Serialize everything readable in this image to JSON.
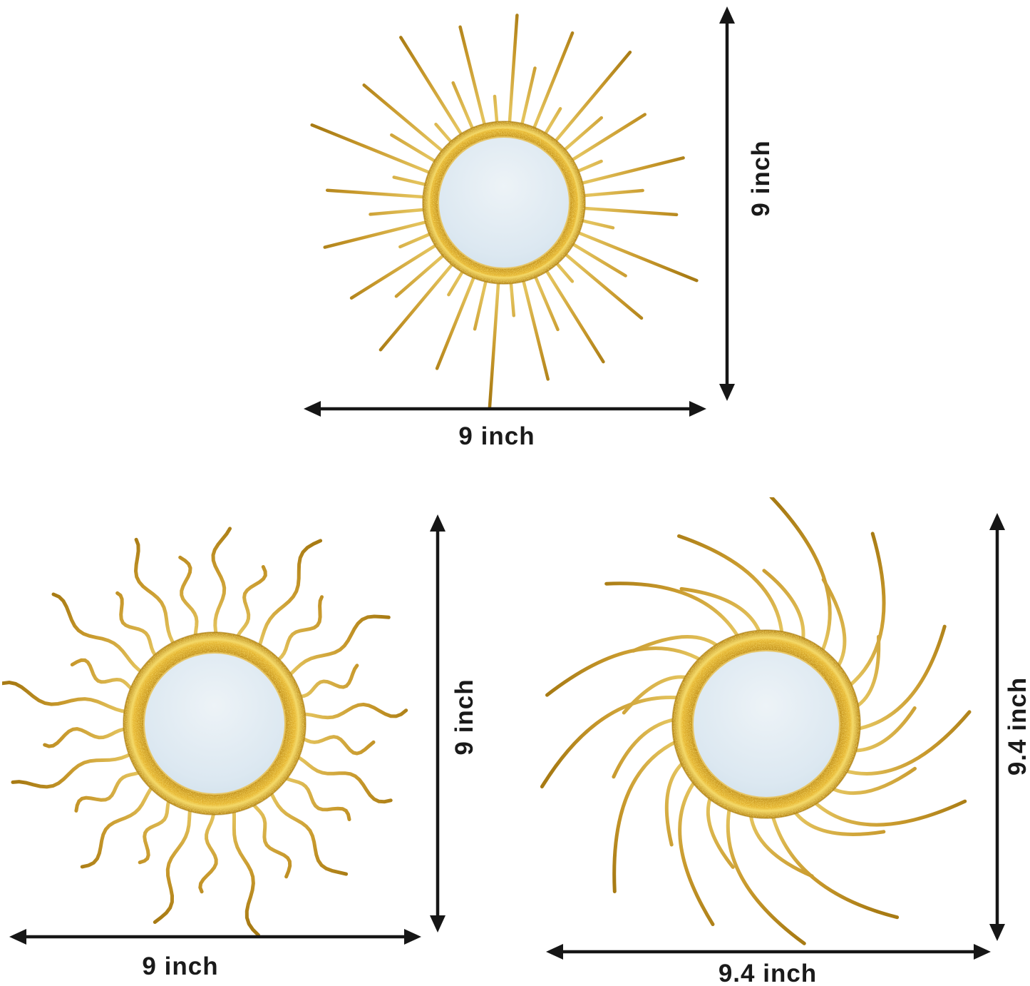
{
  "colors": {
    "background": "#ffffff",
    "arrow": "#161616",
    "label_text": "#1a1a1a",
    "ray_gold": "#C8992C",
    "ray_gold_light": "#E3C25C",
    "ray_gold_dark": "#A87B14",
    "ring_gold": "#E7B630",
    "ring_gold_light": "#F4D969",
    "ring_gold_dark": "#B07D10",
    "glass": "#DCE8F1",
    "glass_light": "#EDF3F7",
    "glass_edge": "#CFDFE9",
    "glass_rim": "#E6C566"
  },
  "panels": {
    "top": {
      "mirror_style": "straight-rays",
      "height_label": "9 inch",
      "width_label": "9 inch"
    },
    "bottom_left": {
      "mirror_style": "wavy-rays",
      "height_label": "9 inch",
      "width_label": "9 inch"
    },
    "bottom_right": {
      "mirror_style": "curved-rays",
      "height_label": "9.4 inch",
      "width_label": "9.4 inch"
    }
  }
}
